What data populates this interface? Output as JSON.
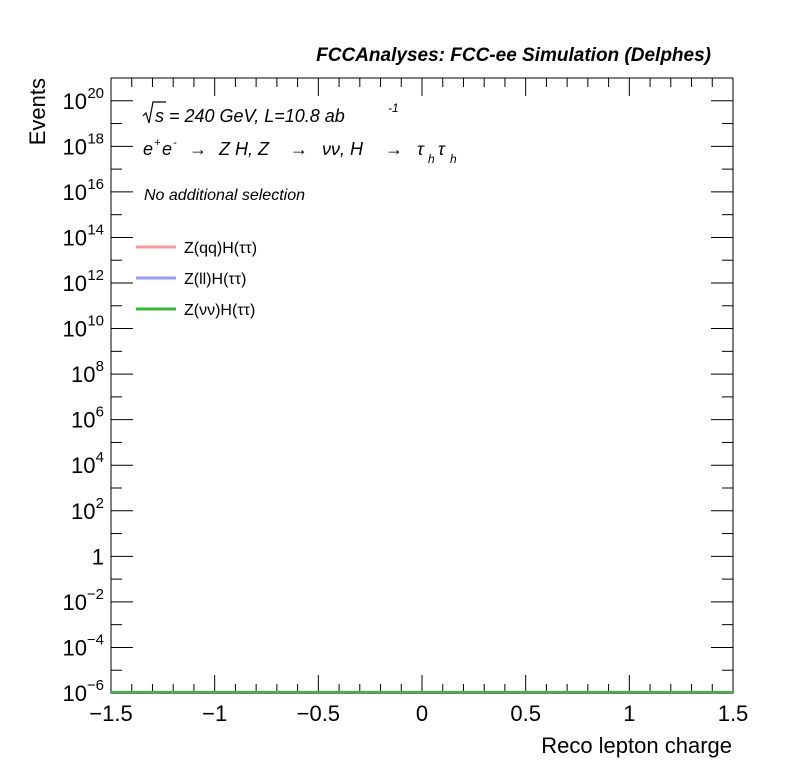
{
  "chart_data": {
    "type": "line",
    "header": "FCCAnalyses: FCC-ee Simulation (Delphes)",
    "xlabel": "Reco lepton charge",
    "ylabel": "Events",
    "xlim": [
      -1.5,
      1.5
    ],
    "ylim": [
      1e-06,
      1e+21
    ],
    "yscale": "log",
    "x_ticks": [
      {
        "value": -1.5,
        "label": "−1.5"
      },
      {
        "value": -1.0,
        "label": "−1"
      },
      {
        "value": -0.5,
        "label": "−0.5"
      },
      {
        "value": 0.0,
        "label": "0"
      },
      {
        "value": 0.5,
        "label": "0.5"
      },
      {
        "value": 1.0,
        "label": "1"
      },
      {
        "value": 1.5,
        "label": "1.5"
      }
    ],
    "y_ticks": [
      {
        "exp": 20,
        "base": "10",
        "sup": "20"
      },
      {
        "exp": 18,
        "base": "10",
        "sup": "18"
      },
      {
        "exp": 16,
        "base": "10",
        "sup": "16"
      },
      {
        "exp": 14,
        "base": "10",
        "sup": "14"
      },
      {
        "exp": 12,
        "base": "10",
        "sup": "12"
      },
      {
        "exp": 10,
        "base": "10",
        "sup": "10"
      },
      {
        "exp": 8,
        "base": "10",
        "sup": "8"
      },
      {
        "exp": 6,
        "base": "10",
        "sup": "6"
      },
      {
        "exp": 4,
        "base": "10",
        "sup": "4"
      },
      {
        "exp": 2,
        "base": "10",
        "sup": "2"
      },
      {
        "exp": 0,
        "base": "1",
        "sup": ""
      },
      {
        "exp": -2,
        "base": "10",
        "sup": "−2"
      },
      {
        "exp": -4,
        "base": "10",
        "sup": "−4"
      },
      {
        "exp": -6,
        "base": "10",
        "sup": "−6"
      }
    ],
    "annotations": {
      "energy": {
        "sqrt": "s",
        "text": " = 240 GeV, L=10.8 ab",
        "sup": "-1"
      },
      "process": {
        "e1": "e",
        "e1sup": "+",
        "e2": "e",
        "e2sup": "-",
        "arrow1": "→",
        "zh": "Z H, Z",
        "arrow2": "→",
        "nunu": "νν, H",
        "arrow3": "→",
        "tau1": "τ",
        "tau1sub": "h",
        "tau2": "τ",
        "tau2sub": "h"
      },
      "selection": "No additional selection"
    },
    "legend_position": "top-left",
    "series": [
      {
        "name": "Z(qq)H(ττ)",
        "color": "#ff9999",
        "x": [
          -1.5,
          1.5
        ],
        "y": [
          1e-06,
          1e-06
        ]
      },
      {
        "name": "Z(ll)H(ττ)",
        "color": "#9999ff",
        "x": [
          -1.5,
          1.5
        ],
        "y": [
          1e-06,
          1e-06
        ]
      },
      {
        "name": "Z(νν)H(ττ)",
        "color": "#33bb33",
        "x": [
          -1.5,
          1.5
        ],
        "y": [
          1e-06,
          1e-06
        ]
      }
    ]
  }
}
